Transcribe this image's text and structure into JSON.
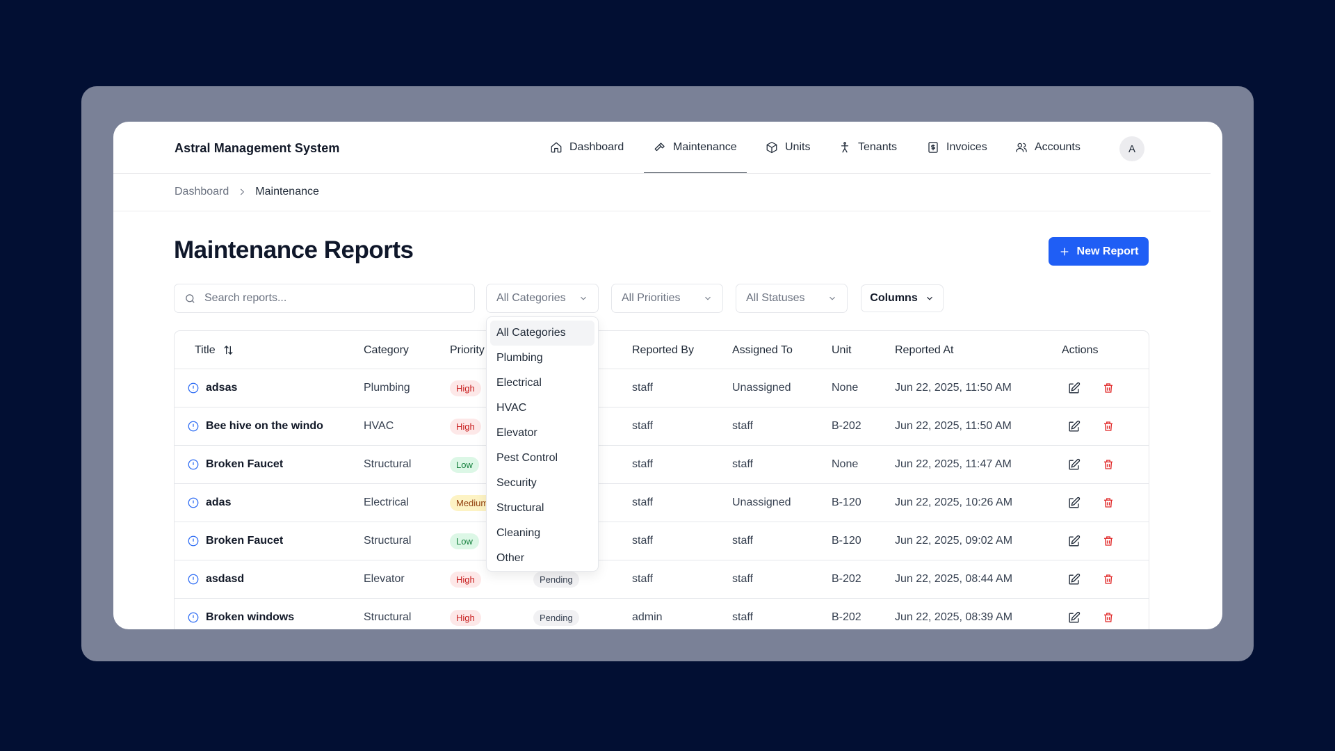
{
  "app": {
    "title": "Astral Management System"
  },
  "nav": {
    "items": [
      {
        "label": "Dashboard",
        "icon": "home-icon"
      },
      {
        "label": "Maintenance",
        "icon": "hammer-icon"
      },
      {
        "label": "Units",
        "icon": "box-icon"
      },
      {
        "label": "Tenants",
        "icon": "person-icon"
      },
      {
        "label": "Invoices",
        "icon": "receipt-icon"
      },
      {
        "label": "Accounts",
        "icon": "users-icon"
      }
    ],
    "active": "Maintenance",
    "avatar": "A"
  },
  "breadcrumb": {
    "parent": "Dashboard",
    "current": "Maintenance"
  },
  "page": {
    "title": "Maintenance Reports",
    "new_button": "New Report"
  },
  "filters": {
    "search_placeholder": "Search reports...",
    "category": "All Categories",
    "priority": "All Priorities",
    "status": "All Statuses",
    "columns": "Columns"
  },
  "dropdown": {
    "options": [
      "All Categories",
      "Plumbing",
      "Electrical",
      "HVAC",
      "Elevator",
      "Pest Control",
      "Security",
      "Structural",
      "Cleaning",
      "Other"
    ],
    "selected": "All Categories"
  },
  "table": {
    "headers": {
      "title": "Title",
      "category": "Category",
      "priority": "Priority",
      "reported_by": "Reported By",
      "assigned_to": "Assigned To",
      "unit": "Unit",
      "reported_at": "Reported At",
      "actions": "Actions"
    },
    "rows": [
      {
        "title": "adsas",
        "category": "Plumbing",
        "priority": "High",
        "status": "",
        "reported_by": "staff",
        "assigned_to": "Unassigned",
        "unit": "None",
        "reported_at": "Jun 22, 2025, 11:50 AM"
      },
      {
        "title": "Bee hive on the windo",
        "category": "HVAC",
        "priority": "High",
        "status": "",
        "reported_by": "staff",
        "assigned_to": "staff",
        "unit": "B-202",
        "reported_at": "Jun 22, 2025, 11:50 AM"
      },
      {
        "title": "Broken Faucet",
        "category": "Structural",
        "priority": "Low",
        "status": "",
        "reported_by": "staff",
        "assigned_to": "staff",
        "unit": "None",
        "reported_at": "Jun 22, 2025, 11:47 AM"
      },
      {
        "title": "adas",
        "category": "Electrical",
        "priority": "Medium",
        "status": "",
        "reported_by": "staff",
        "assigned_to": "Unassigned",
        "unit": "B-120",
        "reported_at": "Jun 22, 2025, 10:26 AM"
      },
      {
        "title": "Broken Faucet",
        "category": "Structural",
        "priority": "Low",
        "status": "",
        "reported_by": "staff",
        "assigned_to": "staff",
        "unit": "B-120",
        "reported_at": "Jun 22, 2025, 09:02 AM"
      },
      {
        "title": "asdasd",
        "category": "Elevator",
        "priority": "High",
        "status": "Pending",
        "reported_by": "staff",
        "assigned_to": "staff",
        "unit": "B-202",
        "reported_at": "Jun 22, 2025, 08:44 AM"
      },
      {
        "title": "Broken windows",
        "category": "Structural",
        "priority": "High",
        "status": "Pending",
        "reported_by": "admin",
        "assigned_to": "staff",
        "unit": "B-202",
        "reported_at": "Jun 22, 2025, 08:39 AM"
      }
    ]
  },
  "colors": {
    "page_bg": "#020f33",
    "frame": "#7a8197",
    "accent": "#1f5ef5",
    "high": "#c81e1e",
    "low": "#15803d",
    "medium": "#92400e",
    "delete": "#e02424"
  }
}
